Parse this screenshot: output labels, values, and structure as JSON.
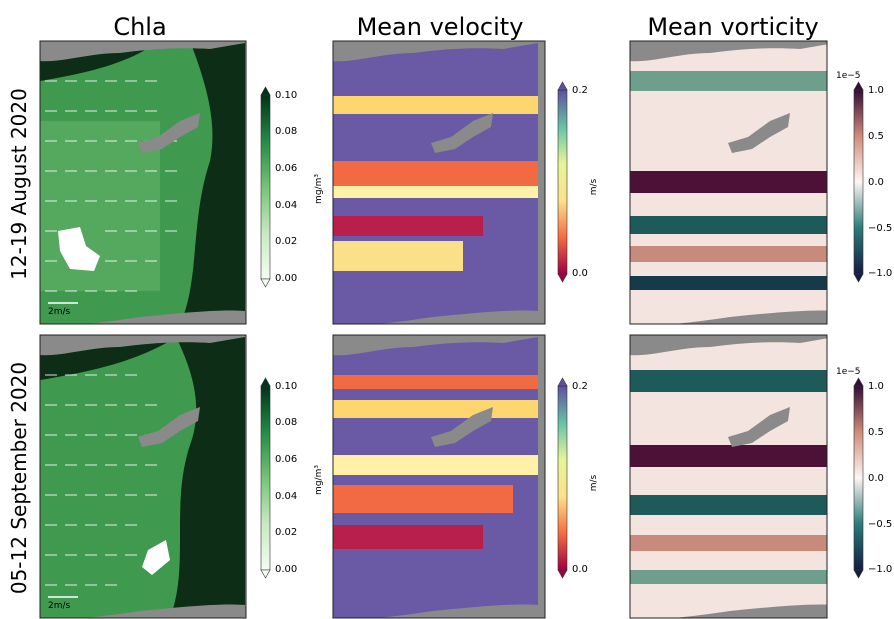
{
  "columns": [
    "Chla",
    "Mean velocity",
    "Mean vorticity"
  ],
  "rows": [
    "12-19 August 2020",
    "05-12 September 2020"
  ],
  "quiver_key": "2m/s",
  "colorbars": {
    "chla": {
      "ticks": [
        "0.10",
        "0.08",
        "0.06",
        "0.04",
        "0.02",
        "0.00"
      ],
      "unit": "mg/m³",
      "colormap": "Greens",
      "range": [
        0,
        0.1
      ]
    },
    "velocity": {
      "ticks": [
        "0.2",
        "0.0"
      ],
      "unit": "m/s",
      "colormap": "Spectral",
      "range": [
        0,
        0.2
      ]
    },
    "vorticity": {
      "ticks": [
        "1.0",
        "0.5",
        "0.0",
        "−0.5",
        "−1.0"
      ],
      "offset": "1e−5",
      "colormap": "curl",
      "range": [
        -1,
        1
      ]
    }
  },
  "colors": {
    "land": "#8a8a8a",
    "sea_chla": "#3f9a50",
    "sea_chla_dark": "#0b2a14",
    "vel_purple": "#6a5aa6",
    "vort_dark": "#4d1036"
  }
}
